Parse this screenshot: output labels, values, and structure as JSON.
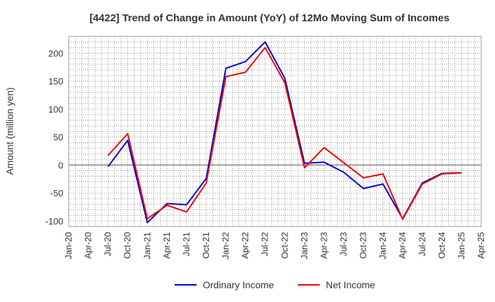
{
  "chart_data": {
    "type": "line",
    "title": "[4422]  Trend of Change in Amount (YoY) of 12Mo Moving Sum of Incomes",
    "xlabel": "",
    "ylabel": "Amount (million yen)",
    "ylim": [
      -110,
      230
    ],
    "yticks": [
      200,
      150,
      100,
      50,
      0,
      -50,
      -100
    ],
    "yticklabels": [
      "200",
      "150",
      "100",
      "50",
      "0",
      "-50",
      "-100"
    ],
    "grid": true,
    "legend_position": "bottom-center",
    "categories": [
      "Jan-20",
      "Apr-20",
      "Jul-20",
      "Oct-20",
      "Jan-21",
      "Apr-21",
      "Jul-21",
      "Oct-21",
      "Jan-22",
      "Apr-22",
      "Jul-22",
      "Oct-22",
      "Jan-23",
      "Apr-23",
      "Jul-23",
      "Oct-23",
      "Jan-24",
      "Apr-24",
      "Jul-24",
      "Oct-24",
      "Jan-25",
      "Apr-25"
    ],
    "series": [
      {
        "name": "Ordinary Income",
        "color": "#0000cc",
        "values": [
          null,
          null,
          -3,
          44,
          -103,
          -69,
          -71,
          -24,
          173,
          185,
          220,
          155,
          3,
          5,
          -13,
          -42,
          -34,
          -96,
          -32,
          -15,
          -14,
          null
        ]
      },
      {
        "name": "Net Income",
        "color": "#ee0000",
        "values": [
          null,
          null,
          17,
          56,
          -96,
          -72,
          -84,
          -32,
          158,
          166,
          210,
          147,
          -5,
          31,
          4,
          -23,
          -16,
          -97,
          -34,
          -16,
          -14,
          null
        ]
      }
    ]
  }
}
